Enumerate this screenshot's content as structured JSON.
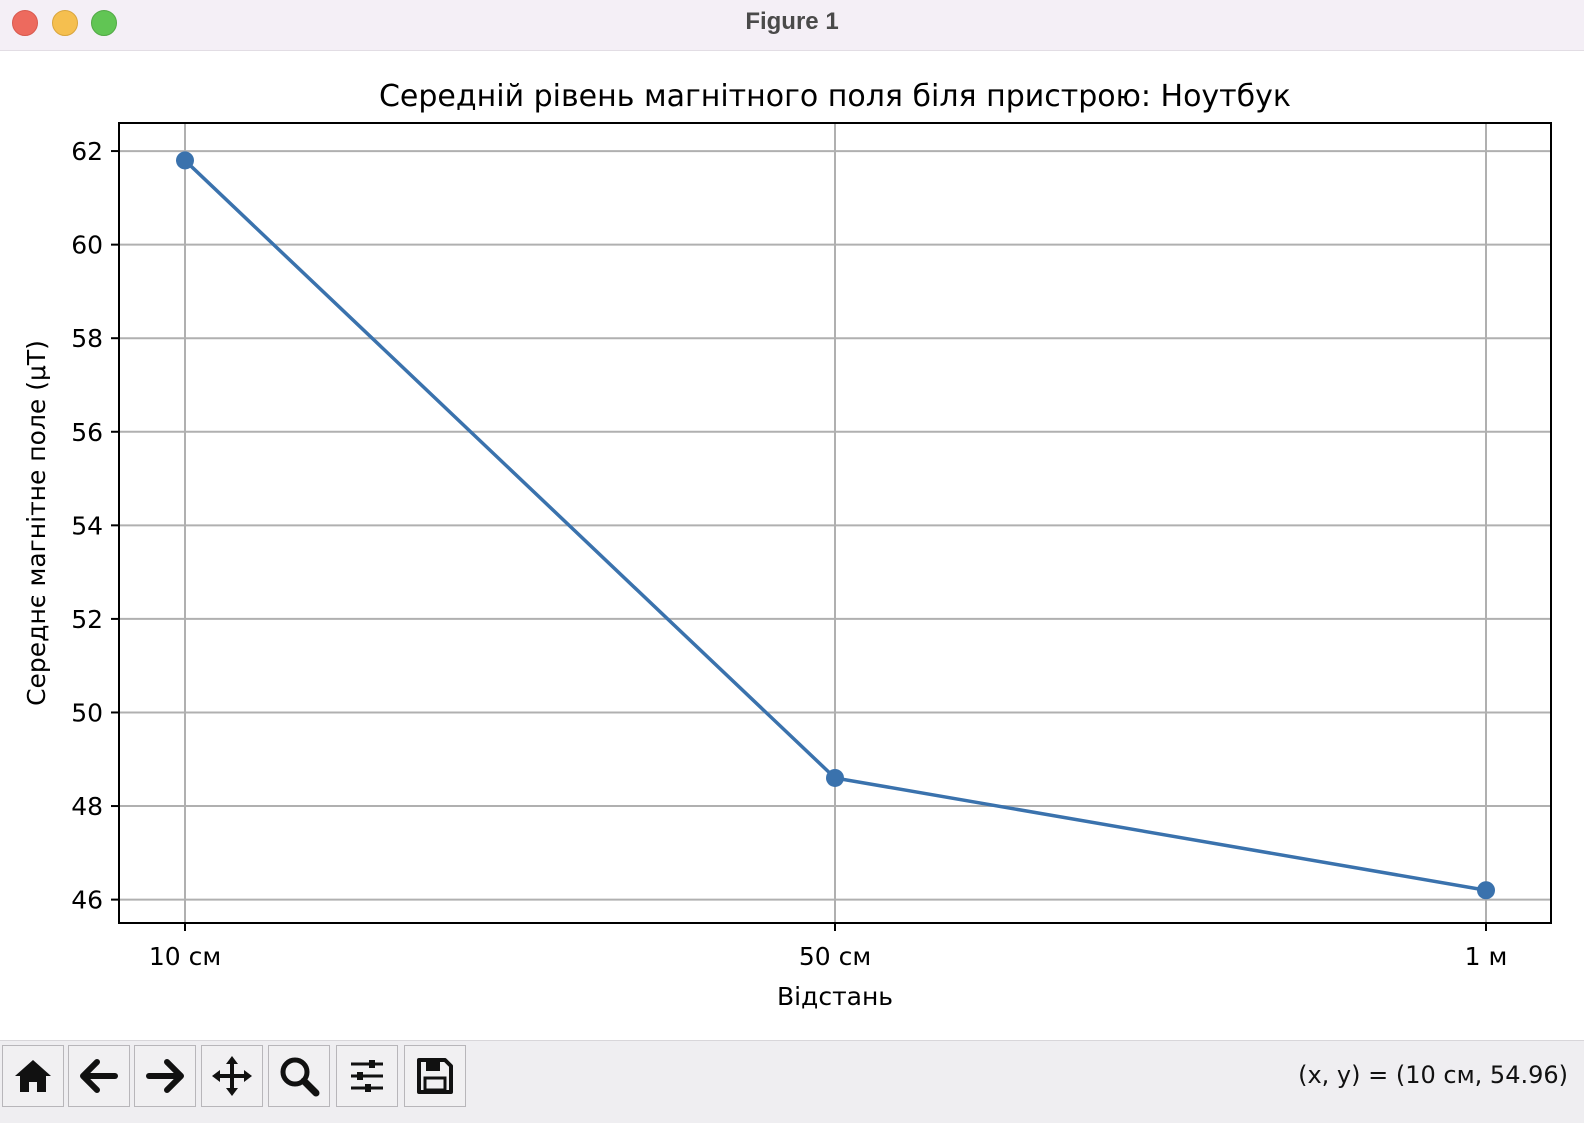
{
  "window": {
    "title": "Figure 1"
  },
  "chart_data": {
    "type": "line",
    "title": "Середній рівень магнітного поля біля пристрою: Ноутбук",
    "xlabel": "Відстань",
    "ylabel": "Середнє магнітне поле (μT)",
    "categories": [
      "10 см",
      "50 см",
      "1 м"
    ],
    "series": [
      {
        "values": [
          61.8,
          48.6,
          46.2
        ],
        "color": "#3a72ad"
      }
    ],
    "ylim": [
      45.5,
      62.6
    ],
    "yticks": [
      46,
      48,
      50,
      52,
      54,
      56,
      58,
      60,
      62
    ],
    "grid": true,
    "marker": "circle"
  },
  "toolbar": {
    "buttons": [
      {
        "name": "home-button",
        "icon": "home-icon"
      },
      {
        "name": "back-button",
        "icon": "arrow-left-icon"
      },
      {
        "name": "forward-button",
        "icon": "arrow-right-icon"
      },
      {
        "name": "pan-button",
        "icon": "move-icon"
      },
      {
        "name": "zoom-button",
        "icon": "magnifier-icon"
      },
      {
        "name": "configure-subplots-button",
        "icon": "sliders-icon"
      },
      {
        "name": "save-button",
        "icon": "floppy-disk-icon"
      }
    ],
    "coords_text": "(x, y) = (10 см, 54.96)"
  }
}
